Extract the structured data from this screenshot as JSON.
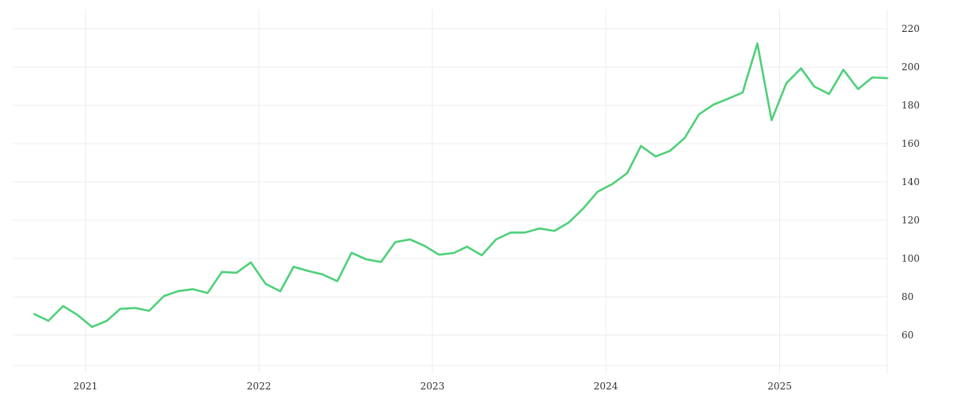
{
  "chart_data": {
    "type": "line",
    "title": "",
    "xlabel": "",
    "ylabel": "",
    "x_ticks": [
      "2021",
      "2022",
      "2023",
      "2024",
      "2025"
    ],
    "y_ticks": [
      60,
      80,
      100,
      120,
      140,
      160,
      180,
      200,
      220
    ],
    "xlim": [
      "2020-08-01",
      "2025-08-15"
    ],
    "ylim": [
      40,
      230
    ],
    "grid": true,
    "y_axis_position": "right",
    "series": [
      {
        "color": "#4fd07a",
        "points": [
          [
            "2020-09",
            71
          ],
          [
            "2020-10",
            67.5
          ],
          [
            "2020-11",
            75.2
          ],
          [
            "2020-12",
            70.6
          ],
          [
            "2021-01",
            64.3
          ],
          [
            "2021-02",
            67.5
          ],
          [
            "2021-03",
            73.7
          ],
          [
            "2021-04",
            74.2
          ],
          [
            "2021-05",
            72.7
          ],
          [
            "2021-06",
            80.4
          ],
          [
            "2021-07",
            83
          ],
          [
            "2021-08",
            84
          ],
          [
            "2021-09",
            82
          ],
          [
            "2021-10",
            93
          ],
          [
            "2021-11",
            92.6
          ],
          [
            "2021-12",
            98
          ],
          [
            "2022-01",
            86.8
          ],
          [
            "2022-02",
            82.9
          ],
          [
            "2022-03",
            95.7
          ],
          [
            "2022-04",
            93.5
          ],
          [
            "2022-05",
            91.7
          ],
          [
            "2022-06",
            88.2
          ],
          [
            "2022-07",
            103
          ],
          [
            "2022-08",
            99.6
          ],
          [
            "2022-09",
            98.2
          ],
          [
            "2022-10",
            108.6
          ],
          [
            "2022-11",
            110
          ],
          [
            "2022-12",
            106.7
          ],
          [
            "2023-01",
            102
          ],
          [
            "2023-02",
            102.9
          ],
          [
            "2023-03",
            106.2
          ],
          [
            "2023-04",
            101.7
          ],
          [
            "2023-05",
            110
          ],
          [
            "2023-06",
            113.6
          ],
          [
            "2023-07",
            113.6
          ],
          [
            "2023-08",
            115.7
          ],
          [
            "2023-09",
            114.4
          ],
          [
            "2023-10",
            118.8
          ],
          [
            "2023-11",
            126.3
          ],
          [
            "2023-12",
            134.9
          ],
          [
            "2024-01",
            138.9
          ],
          [
            "2024-02",
            144.6
          ],
          [
            "2024-03",
            158.8
          ],
          [
            "2024-04",
            153.3
          ],
          [
            "2024-05",
            156.2
          ],
          [
            "2024-06",
            162.9
          ],
          [
            "2024-07",
            175.3
          ],
          [
            "2024-08",
            180.4
          ],
          [
            "2024-09",
            183.5
          ],
          [
            "2024-10",
            186.7
          ],
          [
            "2024-11",
            212.3
          ],
          [
            "2024-12",
            172.2
          ],
          [
            "2025-01",
            191.6
          ],
          [
            "2025-02",
            199.3
          ],
          [
            "2025-03",
            189.8
          ],
          [
            "2025-04",
            185.9
          ],
          [
            "2025-05",
            198.6
          ],
          [
            "2025-06",
            188.5
          ],
          [
            "2025-07",
            194.6
          ],
          [
            "2025-08",
            194.2
          ]
        ]
      }
    ]
  }
}
